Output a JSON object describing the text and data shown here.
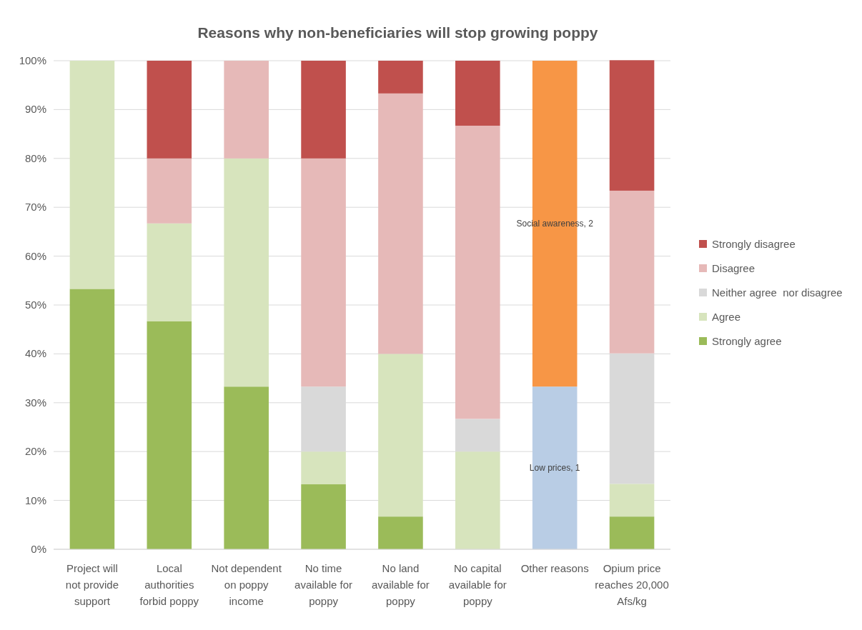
{
  "chart_data": {
    "type": "bar",
    "title": "Reasons why non-beneficiaries will stop growing poppy",
    "categories": [
      "Project will not provide support",
      "Local authorities forbid poppy",
      "Not dependent on poppy income",
      "No time available for poppy",
      "No land available for poppy",
      "No capital available for poppy",
      "Other reasons",
      "Opium price reaches 20,000 Afs/kg"
    ],
    "stacked": true,
    "series": [
      {
        "name": "Strongly agree",
        "color": "#9bbb59",
        "values": [
          53.3,
          46.7,
          33.3,
          13.3,
          6.7,
          null,
          null,
          6.7
        ]
      },
      {
        "name": "Agree",
        "color": "#d7e4bd",
        "values": [
          46.7,
          20,
          46.7,
          6.7,
          33.3,
          20,
          null,
          6.7
        ]
      },
      {
        "name": "Neither agree  nor disagree",
        "color": "#d9d9d9",
        "values": [
          null,
          null,
          null,
          13.3,
          null,
          6.7,
          null,
          26.7
        ]
      },
      {
        "name": "Disagree",
        "color": "#e6b9b8",
        "values": [
          null,
          13.3,
          20,
          46.7,
          53.3,
          60,
          null,
          33.3
        ]
      },
      {
        "name": "Strongly disagree",
        "color": "#c0504d",
        "values": [
          null,
          20,
          null,
          20,
          6.7,
          13.3,
          null,
          26.7
        ]
      },
      {
        "color": "#b9cde5",
        "values": [
          null,
          null,
          null,
          null,
          null,
          null,
          33.3,
          null
        ]
      },
      {
        "color": "#f79646",
        "values": [
          null,
          null,
          null,
          null,
          null,
          null,
          66.7,
          null
        ]
      }
    ],
    "annotations": [
      "Low prices, 1",
      "Social awareness, 2"
    ],
    "ylim": [
      0,
      100
    ],
    "yticks": [
      {
        "value": 0,
        "label": "0%"
      },
      {
        "value": 10,
        "label": "10%"
      },
      {
        "value": 20,
        "label": "20%"
      },
      {
        "value": 30,
        "label": "30%"
      },
      {
        "value": 40,
        "label": "40%"
      },
      {
        "value": 50,
        "label": "50%"
      },
      {
        "value": 60,
        "label": "60%"
      },
      {
        "value": 70,
        "label": "70%"
      },
      {
        "value": 80,
        "label": "80%"
      },
      {
        "value": 90,
        "label": "90%"
      },
      {
        "value": 100,
        "label": "100%"
      }
    ],
    "grid": "y",
    "legend": "right"
  }
}
